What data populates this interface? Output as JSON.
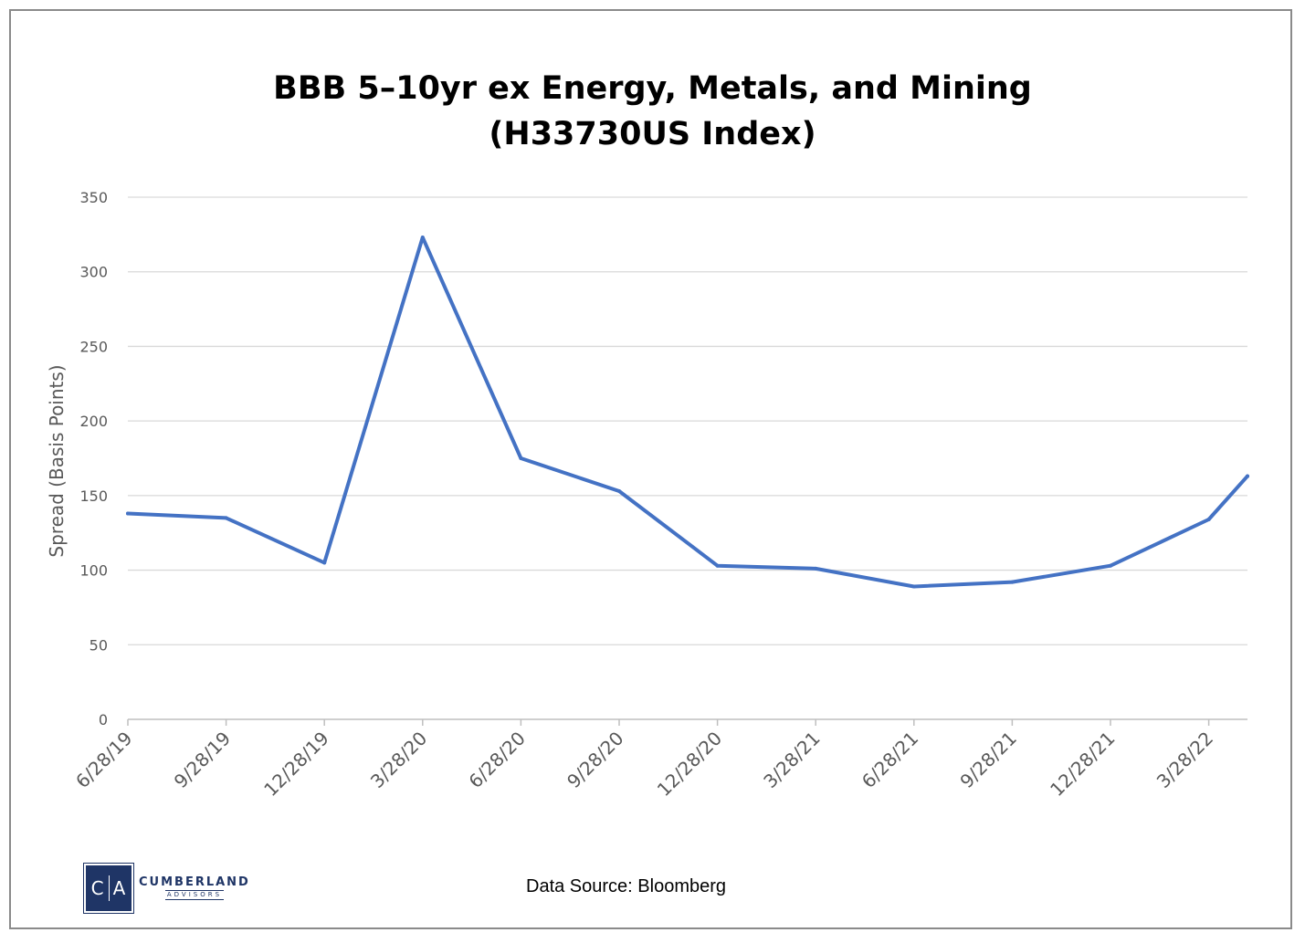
{
  "chart_data": {
    "type": "line",
    "title_line1": "BBB 5–10yr ex Energy, Metals, and Mining",
    "title_line2": "(H33730US Index)",
    "xlabel": "",
    "ylabel": "Spread (Basis Points)",
    "ylim": [
      0,
      350
    ],
    "yticks": [
      0,
      50,
      100,
      150,
      200,
      250,
      300,
      350
    ],
    "grid": true,
    "line_color": "#4472c4",
    "categories": [
      "6/28/19",
      "9/28/19",
      "12/28/19",
      "3/28/20",
      "6/28/20",
      "9/28/20",
      "12/28/20",
      "3/28/21",
      "6/28/21",
      "9/28/21",
      "12/28/21",
      "3/28/22"
    ],
    "series": [
      {
        "x": [
          "6/28/19",
          "9/28/19",
          "12/28/19",
          "3/28/20",
          "6/28/20",
          "9/28/20",
          "12/28/20",
          "3/28/21",
          "6/28/21",
          "9/28/21",
          "12/28/21",
          "3/28/22",
          "5/6/22",
          "5/10/22"
        ],
        "values": [
          138,
          135,
          105,
          323,
          175,
          153,
          103,
          101,
          89,
          92,
          103,
          134,
          163,
          163
        ]
      }
    ]
  },
  "footer": {
    "source": "Data Source: Bloomberg",
    "logo_letters_left": "C",
    "logo_letters_right": "A",
    "logo_name": "CUMBERLAND",
    "logo_sub": "ADVISORS"
  }
}
